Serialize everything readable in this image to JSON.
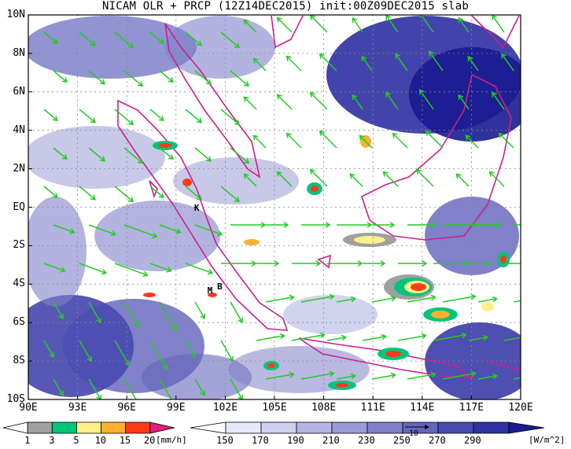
{
  "title": "NICAM OLR + PRCP (12Z14DEC2015) init:00Z09DEC2015 slab",
  "map": {
    "lat_labels": [
      "10N",
      "8N",
      "6N",
      "4N",
      "2N",
      "EQ",
      "2S",
      "4S",
      "6S",
      "8S",
      "10S"
    ],
    "lon_labels": [
      "90E",
      "93E",
      "96E",
      "99E",
      "102E",
      "105E",
      "108E",
      "111E",
      "114E",
      "117E",
      "120E"
    ],
    "lat_range": [
      -10,
      10
    ],
    "lon_range": [
      90,
      120
    ],
    "site_labels": [
      {
        "text": "K",
        "lon": 100.3,
        "lat": -0.1
      },
      {
        "text": "M",
        "lon": 101.1,
        "lat": -4.4
      },
      {
        "text": "B",
        "lon": 101.7,
        "lat": -4.2
      }
    ],
    "coastline_color": "#cc1f8a",
    "vector_color": "#22cc22"
  },
  "precip_colorbar": {
    "ticks": [
      "1",
      "3",
      "5",
      "10",
      "15",
      "20"
    ],
    "unit": "[mm/h]",
    "colors": [
      "#ffffff",
      "#a0a0a0",
      "#00c47a",
      "#fff08a",
      "#ffb030",
      "#ff3a1a",
      "#e0207a"
    ]
  },
  "olr_colorbar": {
    "ticks": [
      "150",
      "170",
      "190",
      "210",
      "230",
      "250",
      "270",
      "290"
    ],
    "unit": "[W/m^2]",
    "colors": [
      "#ffffff",
      "#e8e8f8",
      "#cfd0ee",
      "#b4b5e2",
      "#9a9bd6",
      "#7f80ca",
      "#6465bd",
      "#4a4bb0",
      "#2f30a2",
      "#1a1b90"
    ]
  },
  "vector_reference": {
    "label": "10"
  }
}
